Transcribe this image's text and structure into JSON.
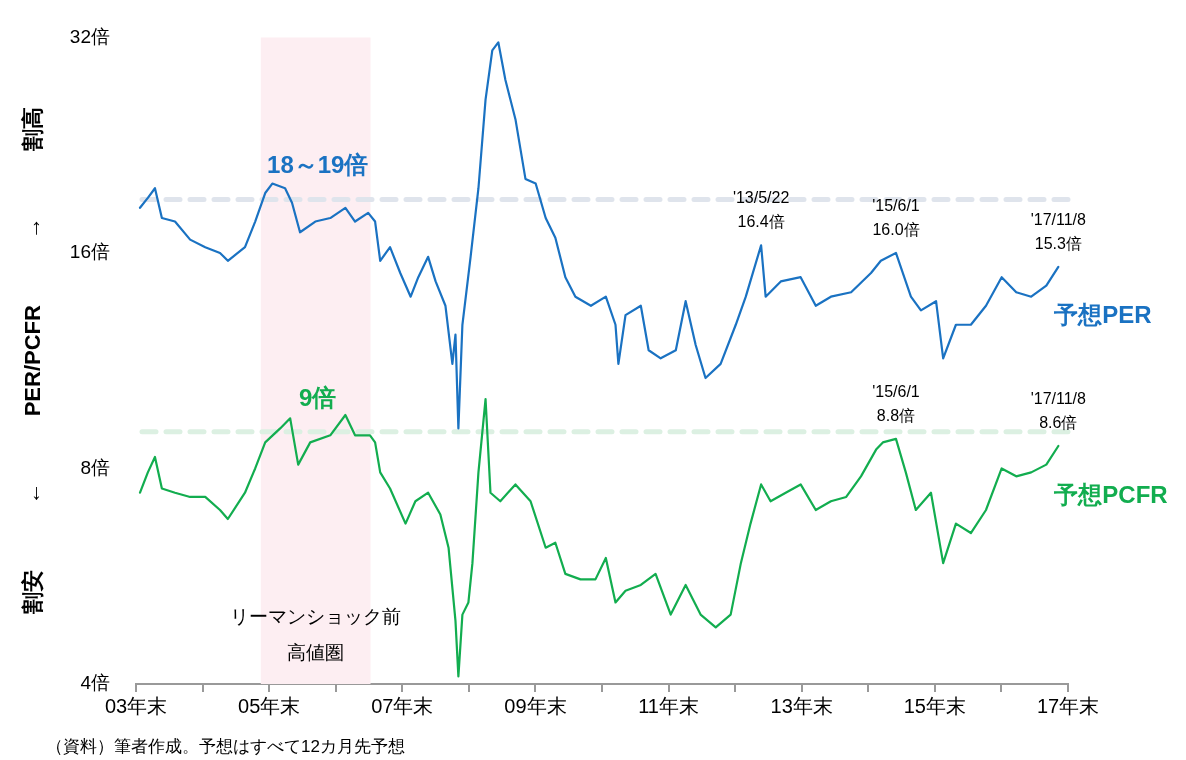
{
  "chart_data": {
    "type": "line",
    "ylabel": "割安 ← PER/PCFR → 割高",
    "log": "y",
    "grid": false,
    "legend": false,
    "marker": "none",
    "line_style": "solid",
    "ylim": [
      4,
      32
    ],
    "yticks": [
      {
        "value": 4,
        "label": "4倍"
      },
      {
        "value": 8,
        "label": "8倍"
      },
      {
        "value": 16,
        "label": "16倍"
      },
      {
        "value": 32,
        "label": "32倍"
      }
    ],
    "xlim": [
      "2003-12-31",
      "2017-12-31"
    ],
    "xticks": [
      {
        "value": "2003-12-31",
        "label": "03年末"
      },
      {
        "value": "2004-12-31",
        "label": null
      },
      {
        "value": "2005-12-31",
        "label": "05年末"
      },
      {
        "value": "2006-12-31",
        "label": null
      },
      {
        "value": "2007-12-31",
        "label": "07年末"
      },
      {
        "value": "2008-12-31",
        "label": null
      },
      {
        "value": "2009-12-31",
        "label": "09年末"
      },
      {
        "value": "2010-12-31",
        "label": null
      },
      {
        "value": "2011-12-31",
        "label": "11年末"
      },
      {
        "value": "2012-12-31",
        "label": null
      },
      {
        "value": "2013-12-31",
        "label": "13年末"
      },
      {
        "value": "2014-12-31",
        "label": null
      },
      {
        "value": "2015-12-31",
        "label": "15年末"
      },
      {
        "value": "2016-12-31",
        "label": null
      },
      {
        "value": "2017-12-31",
        "label": "17年末"
      }
    ],
    "series": [
      {
        "name": "予想PER",
        "color": "#1a72c2",
        "x": [
          "2004-01-22",
          "2004-03-05",
          "2004-04-13",
          "2004-05-21",
          "2004-08-01",
          "2004-10-23",
          "2005-01-14",
          "2005-04-05",
          "2005-05-18",
          "2005-08-20",
          "2005-10-15",
          "2005-12-09",
          "2006-01-17",
          "2006-03-28",
          "2006-05-05",
          "2006-06-18",
          "2006-09-10",
          "2006-12-01",
          "2007-02-22",
          "2007-04-16",
          "2007-06-27",
          "2007-08-04",
          "2007-09-01",
          "2007-10-25",
          "2007-12-20",
          "2008-02-15",
          "2008-03-28",
          "2008-05-21",
          "2008-07-01",
          "2008-08-24",
          "2008-10-01",
          "2008-10-18",
          "2008-11-03",
          "2008-11-25",
          "2009-01-09",
          "2009-02-21",
          "2009-04-01",
          "2009-05-08",
          "2009-06-10",
          "2009-07-19",
          "2009-09-12",
          "2009-11-06",
          "2010-01-01",
          "2010-02-25",
          "2010-04-19",
          "2010-06-13",
          "2010-08-07",
          "2010-10-31",
          "2011-01-21",
          "2011-03-15",
          "2011-03-31",
          "2011-05-09",
          "2011-08-01",
          "2011-09-13",
          "2011-11-18",
          "2012-02-09",
          "2012-04-03",
          "2012-05-28",
          "2012-07-21",
          "2012-10-12",
          "2013-01-03",
          "2013-02-27",
          "2013-05-22",
          "2013-06-16",
          "2013-09-07",
          "2013-12-25",
          "2014-03-18",
          "2014-06-09",
          "2014-09-28",
          "2015-01-15",
          "2015-03-10",
          "2015-06-01",
          "2015-08-22",
          "2015-10-16",
          "2016-01-07",
          "2016-02-15",
          "2016-04-25",
          "2016-07-16",
          "2016-10-07",
          "2017-01-01",
          "2017-03-22",
          "2017-06-12",
          "2017-09-03",
          "2017-11-08"
        ],
        "values": [
          18.5,
          19.1,
          19.7,
          17.9,
          17.7,
          16.7,
          16.3,
          16.0,
          15.6,
          16.3,
          17.7,
          19.4,
          20.0,
          19.7,
          18.8,
          17.1,
          17.7,
          17.9,
          18.5,
          17.7,
          18.2,
          17.7,
          15.6,
          16.3,
          15.0,
          13.9,
          14.8,
          15.8,
          14.6,
          13.5,
          11.2,
          12.3,
          9.1,
          12.7,
          15.8,
          19.7,
          26.2,
          30.7,
          31.5,
          27.9,
          24.6,
          20.3,
          20.0,
          17.9,
          16.8,
          14.8,
          13.9,
          13.5,
          13.9,
          12.7,
          11.2,
          13.1,
          13.5,
          11.7,
          11.4,
          11.7,
          13.7,
          11.9,
          10.7,
          11.2,
          12.7,
          13.9,
          16.4,
          13.9,
          14.6,
          14.8,
          13.5,
          13.9,
          14.1,
          15.0,
          15.6,
          16.0,
          13.9,
          13.3,
          13.7,
          11.4,
          12.7,
          12.7,
          13.5,
          14.8,
          14.1,
          13.9,
          14.4,
          15.3
        ]
      },
      {
        "name": "予想PCFR",
        "color": "#12ad4f",
        "x": [
          "2004-01-22",
          "2004-03-05",
          "2004-04-13",
          "2004-05-21",
          "2004-08-01",
          "2004-10-23",
          "2005-01-14",
          "2005-04-05",
          "2005-05-18",
          "2005-08-20",
          "2005-10-15",
          "2005-12-09",
          "2006-03-01",
          "2006-04-25",
          "2006-06-08",
          "2006-08-13",
          "2006-12-01",
          "2007-02-22",
          "2007-04-16",
          "2007-07-07",
          "2007-08-04",
          "2007-09-01",
          "2007-10-25",
          "2008-01-18",
          "2008-03-12",
          "2008-05-21",
          "2008-07-27",
          "2008-09-10",
          "2008-10-18",
          "2008-11-03",
          "2008-11-25",
          "2008-12-28",
          "2009-01-19",
          "2009-02-21",
          "2009-04-01",
          "2009-04-28",
          "2009-06-21",
          "2009-09-12",
          "2009-12-04",
          "2010-02-25",
          "2010-04-19",
          "2010-06-13",
          "2010-09-04",
          "2010-11-25",
          "2011-01-21",
          "2011-03-15",
          "2011-05-09",
          "2011-08-01",
          "2011-10-21",
          "2012-01-12",
          "2012-04-03",
          "2012-06-24",
          "2012-09-15",
          "2012-12-06",
          "2013-01-31",
          "2013-03-25",
          "2013-05-22",
          "2013-07-13",
          "2013-10-04",
          "2013-12-25",
          "2014-03-18",
          "2014-06-09",
          "2014-09-01",
          "2014-11-21",
          "2015-02-12",
          "2015-03-21",
          "2015-06-01",
          "2015-07-25",
          "2015-09-18",
          "2015-12-10",
          "2016-02-15",
          "2016-04-25",
          "2016-07-16",
          "2016-10-07",
          "2017-01-01",
          "2017-03-22",
          "2017-06-12",
          "2017-09-03",
          "2017-11-08"
        ],
        "values": [
          7.4,
          7.9,
          8.3,
          7.5,
          7.4,
          7.3,
          7.3,
          7.0,
          6.8,
          7.4,
          8.0,
          8.7,
          9.1,
          9.4,
          8.1,
          8.7,
          8.9,
          9.5,
          8.9,
          8.9,
          8.7,
          7.9,
          7.5,
          6.7,
          7.2,
          7.4,
          6.9,
          6.2,
          4.9,
          4.1,
          5.0,
          5.2,
          5.9,
          7.9,
          10.0,
          7.4,
          7.2,
          7.6,
          7.2,
          6.2,
          6.3,
          5.7,
          5.6,
          5.6,
          6.0,
          5.2,
          5.4,
          5.5,
          5.7,
          5.0,
          5.5,
          5.0,
          4.8,
          5.0,
          5.9,
          6.7,
          7.6,
          7.2,
          7.4,
          7.6,
          7.0,
          7.2,
          7.3,
          7.8,
          8.5,
          8.7,
          8.8,
          7.9,
          7.0,
          7.4,
          5.9,
          6.7,
          6.5,
          7.0,
          8.0,
          7.8,
          7.9,
          8.1,
          8.6
        ]
      }
    ],
    "ref_lines": [
      {
        "axis": "y",
        "value": 19,
        "label": "18～19倍",
        "color": "#dfe4ec",
        "line_style": "dashed"
      },
      {
        "axis": "y",
        "value": 9,
        "label": "9倍",
        "color": "#dcf0e2",
        "line_style": "dashed"
      }
    ],
    "bands": [
      {
        "axis": "x",
        "from": "2005-11-15",
        "to": "2007-07-10",
        "label": "リーマンショック前高値圏",
        "color": "#fdeef2"
      }
    ],
    "annotations": [
      {
        "text": "'13/5/22\n16.4倍",
        "x": "2013-05-22",
        "y": 16.4
      },
      {
        "text": "'15/6/1\n16.0倍",
        "x": "2015-06-01",
        "y": 16.0
      },
      {
        "text": "'17/11/8\n15.3倍",
        "x": "2017-11-08",
        "y": 15.3
      },
      {
        "text": "'15/6/1\n8.8倍",
        "x": "2015-06-01",
        "y": 8.8
      },
      {
        "text": "'17/11/8\n8.6倍",
        "x": "2017-11-08",
        "y": 8.6
      },
      "（資料）筆者作成。予想はすべて12カ月先予想"
    ]
  }
}
